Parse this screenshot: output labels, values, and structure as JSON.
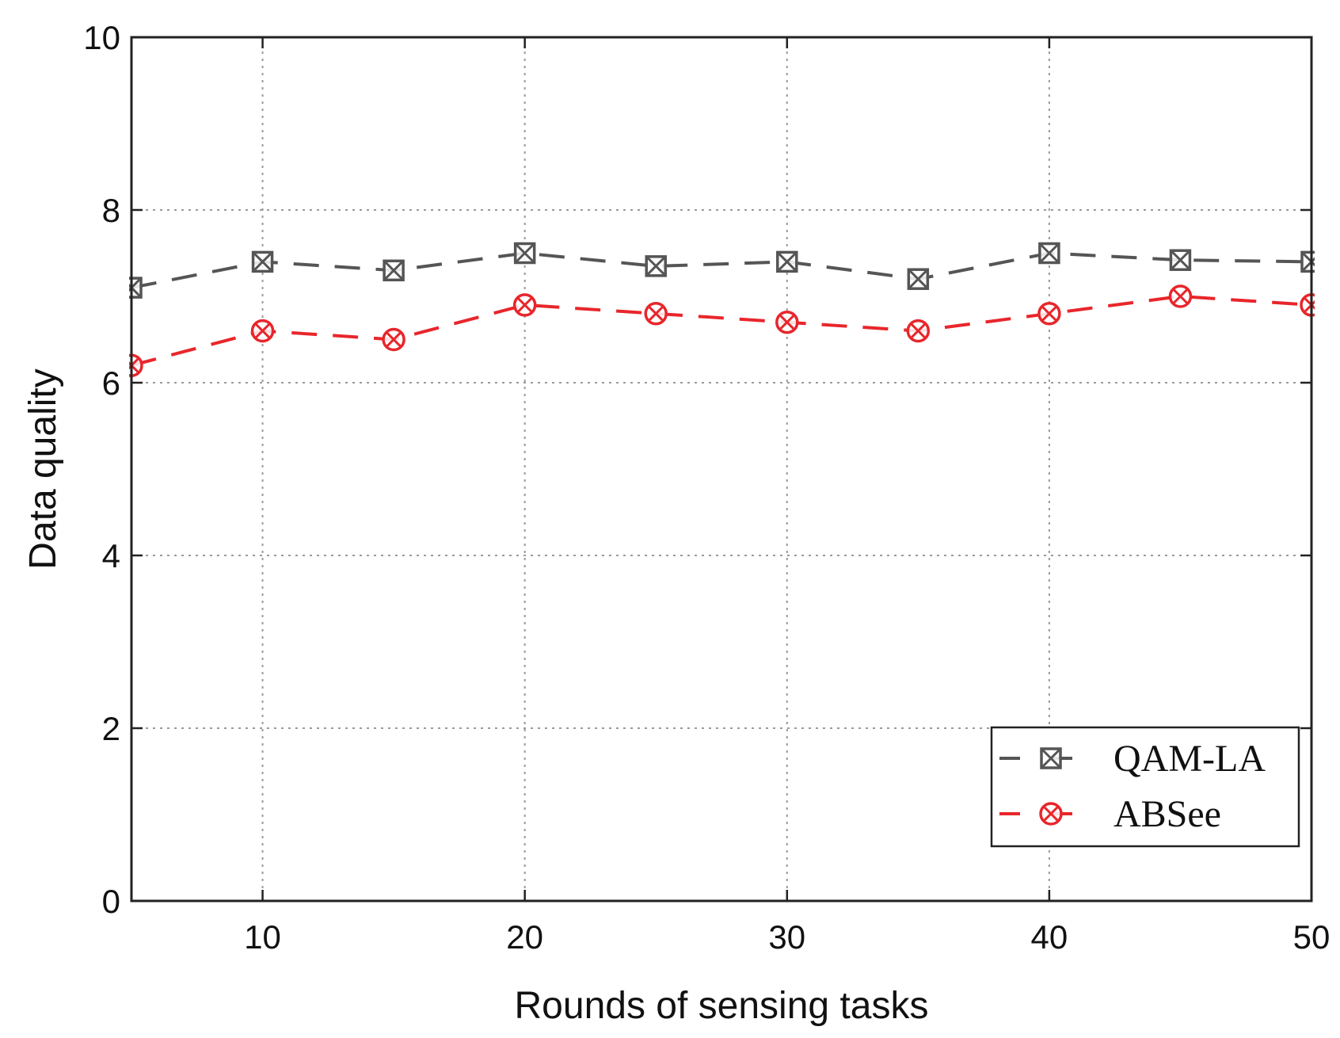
{
  "chart_data": {
    "type": "line",
    "xlabel": "Rounds of sensing tasks",
    "ylabel": "Data quality",
    "xlim": [
      5,
      50
    ],
    "ylim": [
      0,
      10
    ],
    "xticks": [
      10,
      20,
      30,
      40,
      50
    ],
    "yticks": [
      0,
      2,
      4,
      6,
      8,
      10
    ],
    "grid": true,
    "legend_position": "bottom-right",
    "x": [
      5,
      10,
      15,
      20,
      25,
      30,
      35,
      40,
      45,
      50
    ],
    "series": [
      {
        "name": "QAM-LA",
        "color": "#555555",
        "marker": "boxed-x",
        "values": [
          7.1,
          7.4,
          7.3,
          7.5,
          7.35,
          7.4,
          7.2,
          7.5,
          7.42,
          7.4
        ]
      },
      {
        "name": "ABSee",
        "color": "#e8262b",
        "marker": "circled-x",
        "values": [
          6.2,
          6.6,
          6.5,
          6.9,
          6.8,
          6.7,
          6.6,
          6.8,
          7.0,
          6.9
        ]
      }
    ]
  }
}
